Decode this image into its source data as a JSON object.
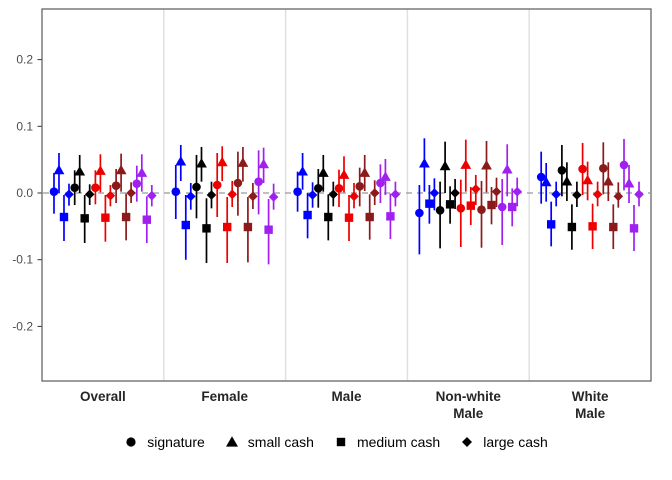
{
  "chart_data": {
    "type": "scatter",
    "subtype": "pointrange-coefficient-plot",
    "title": "",
    "xlabel": "",
    "ylabel": "",
    "ylim": [
      -0.28,
      0.276
    ],
    "grid": false,
    "zero_line": {
      "value": 0.0,
      "style": "dashed",
      "color": "#999999"
    },
    "yticks": [
      {
        "value": 0.2,
        "label": "0.2"
      },
      {
        "value": 0.1,
        "label": "0.1"
      },
      {
        "value": 0.0,
        "label": "0.0"
      },
      {
        "value": -0.1,
        "label": "-0.1"
      },
      {
        "value": -0.2,
        "label": "-0.2"
      }
    ],
    "shape_legend": [
      {
        "shape": "circle",
        "label": "signature"
      },
      {
        "shape": "triangle",
        "label": "small cash"
      },
      {
        "shape": "square",
        "label": "medium cash"
      },
      {
        "shape": "diamond",
        "label": "large cash"
      }
    ],
    "color_groups": [
      {
        "name": "group-1",
        "color": "#0000FF"
      },
      {
        "name": "group-2",
        "color": "#000000"
      },
      {
        "name": "group-3",
        "color": "#EE0000"
      },
      {
        "name": "group-4",
        "color": "#8B1A1A"
      },
      {
        "name": "group-5",
        "color": "#A020F0"
      }
    ],
    "value_format": "[estimate, ci_low, ci_high]",
    "facets": [
      {
        "label_lines": [
          "Overall"
        ],
        "groups": [
          {
            "color": "#0000FF",
            "estimates": {
              "signature": [
                0.002,
                -0.031,
                0.03
              ],
              "small_cash": [
                0.034,
                0.0,
                0.06
              ],
              "medium_cash": [
                -0.036,
                -0.072,
                -0.003
              ],
              "large_cash": [
                -0.002,
                -0.019,
                0.014
              ]
            }
          },
          {
            "color": "#000000",
            "estimates": {
              "signature": [
                0.008,
                -0.018,
                0.034
              ],
              "small_cash": [
                0.032,
                0.0,
                0.057
              ],
              "medium_cash": [
                -0.038,
                -0.075,
                -0.003
              ],
              "large_cash": [
                -0.002,
                -0.018,
                0.013
              ]
            }
          },
          {
            "color": "#EE0000",
            "estimates": {
              "signature": [
                0.008,
                -0.017,
                0.034
              ],
              "small_cash": [
                0.033,
                0.001,
                0.058
              ],
              "medium_cash": [
                -0.037,
                -0.073,
                -0.003
              ],
              "large_cash": [
                -0.004,
                -0.02,
                0.012
              ]
            }
          },
          {
            "color": "#8B1A1A",
            "estimates": {
              "signature": [
                0.011,
                -0.015,
                0.036
              ],
              "small_cash": [
                0.034,
                0.002,
                0.059
              ],
              "medium_cash": [
                -0.036,
                -0.071,
                -0.001
              ],
              "large_cash": [
                0.0,
                -0.015,
                0.016
              ]
            }
          },
          {
            "color": "#A020F0",
            "estimates": {
              "signature": [
                0.014,
                -0.013,
                0.041
              ],
              "small_cash": [
                0.03,
                0.002,
                0.058
              ],
              "medium_cash": [
                -0.04,
                -0.075,
                -0.005
              ],
              "large_cash": [
                -0.004,
                -0.02,
                0.012
              ]
            }
          }
        ]
      },
      {
        "label_lines": [
          "Female"
        ],
        "groups": [
          {
            "color": "#0000FF",
            "estimates": {
              "signature": [
                0.002,
                -0.039,
                0.042
              ],
              "small_cash": [
                0.047,
                0.018,
                0.072
              ],
              "medium_cash": [
                -0.048,
                -0.1,
                -0.003
              ],
              "large_cash": [
                -0.005,
                -0.025,
                0.015
              ]
            }
          },
          {
            "color": "#000000",
            "estimates": {
              "signature": [
                0.009,
                -0.038,
                0.057
              ],
              "small_cash": [
                0.044,
                0.017,
                0.069
              ],
              "medium_cash": [
                -0.053,
                -0.105,
                -0.008
              ],
              "large_cash": [
                -0.003,
                -0.023,
                0.017
              ]
            }
          },
          {
            "color": "#EE0000",
            "estimates": {
              "signature": [
                0.012,
                -0.036,
                0.06
              ],
              "small_cash": [
                0.046,
                0.018,
                0.07
              ],
              "medium_cash": [
                -0.051,
                -0.105,
                -0.006
              ],
              "large_cash": [
                -0.002,
                -0.021,
                0.018
              ]
            }
          },
          {
            "color": "#8B1A1A",
            "estimates": {
              "signature": [
                0.015,
                -0.034,
                0.062
              ],
              "small_cash": [
                0.045,
                0.017,
                0.069
              ],
              "medium_cash": [
                -0.051,
                -0.104,
                -0.006
              ],
              "large_cash": [
                -0.005,
                -0.024,
                0.015
              ]
            }
          },
          {
            "color": "#A020F0",
            "estimates": {
              "signature": [
                0.017,
                -0.032,
                0.064
              ],
              "small_cash": [
                0.043,
                0.015,
                0.068
              ],
              "medium_cash": [
                -0.055,
                -0.107,
                -0.009
              ],
              "large_cash": [
                -0.006,
                -0.025,
                0.014
              ]
            }
          }
        ]
      },
      {
        "label_lines": [
          "Male"
        ],
        "groups": [
          {
            "color": "#0000FF",
            "estimates": {
              "signature": [
                0.002,
                -0.028,
                0.032
              ],
              "small_cash": [
                0.032,
                0.005,
                0.06
              ],
              "medium_cash": [
                -0.033,
                -0.068,
                0.0
              ],
              "large_cash": [
                -0.003,
                -0.022,
                0.016
              ]
            }
          },
          {
            "color": "#000000",
            "estimates": {
              "signature": [
                0.007,
                -0.022,
                0.036
              ],
              "small_cash": [
                0.03,
                0.002,
                0.057
              ],
              "medium_cash": [
                -0.036,
                -0.071,
                -0.002
              ],
              "large_cash": [
                -0.002,
                -0.02,
                0.017
              ]
            }
          },
          {
            "color": "#EE0000",
            "estimates": {
              "signature": [
                0.007,
                -0.021,
                0.035
              ],
              "small_cash": [
                0.027,
                0.001,
                0.055
              ],
              "medium_cash": [
                -0.037,
                -0.072,
                -0.003
              ],
              "large_cash": [
                -0.005,
                -0.023,
                0.015
              ]
            }
          },
          {
            "color": "#8B1A1A",
            "estimates": {
              "signature": [
                0.01,
                -0.02,
                0.038
              ],
              "small_cash": [
                0.03,
                0.003,
                0.057
              ],
              "medium_cash": [
                -0.036,
                -0.07,
                -0.002
              ],
              "large_cash": [
                0.0,
                -0.018,
                0.019
              ]
            }
          },
          {
            "color": "#A020F0",
            "estimates": {
              "signature": [
                0.015,
                -0.015,
                0.043
              ],
              "small_cash": [
                0.024,
                -0.003,
                0.051
              ],
              "medium_cash": [
                -0.035,
                -0.069,
                -0.001
              ],
              "large_cash": [
                -0.002,
                -0.02,
                0.017
              ]
            }
          }
        ]
      },
      {
        "label_lines": [
          "Non-white",
          "Male"
        ],
        "groups": [
          {
            "color": "#0000FF",
            "estimates": {
              "signature": [
                -0.03,
                -0.092,
                0.012
              ],
              "small_cash": [
                0.044,
                0.002,
                0.082
              ],
              "medium_cash": [
                -0.016,
                -0.046,
                0.012
              ],
              "large_cash": [
                0.0,
                -0.026,
                0.022
              ]
            }
          },
          {
            "color": "#000000",
            "estimates": {
              "signature": [
                -0.026,
                -0.083,
                0.017
              ],
              "small_cash": [
                0.04,
                0.0,
                0.077
              ],
              "medium_cash": [
                -0.017,
                -0.046,
                0.01
              ],
              "large_cash": [
                0.0,
                -0.024,
                0.021
              ]
            }
          },
          {
            "color": "#EE0000",
            "estimates": {
              "signature": [
                -0.023,
                -0.081,
                0.02
              ],
              "small_cash": [
                0.042,
                0.002,
                0.08
              ],
              "medium_cash": [
                -0.019,
                -0.048,
                0.009
              ],
              "large_cash": [
                0.006,
                -0.018,
                0.027
              ]
            }
          },
          {
            "color": "#8B1A1A",
            "estimates": {
              "signature": [
                -0.025,
                -0.082,
                0.018
              ],
              "small_cash": [
                0.041,
                0.001,
                0.078
              ],
              "medium_cash": [
                -0.018,
                -0.047,
                0.009
              ],
              "large_cash": [
                0.002,
                -0.021,
                0.023
              ]
            }
          },
          {
            "color": "#A020F0",
            "estimates": {
              "signature": [
                -0.021,
                -0.078,
                0.021
              ],
              "small_cash": [
                0.035,
                -0.005,
                0.073
              ],
              "medium_cash": [
                -0.021,
                -0.05,
                0.007
              ],
              "large_cash": [
                0.002,
                -0.02,
                0.023
              ]
            }
          }
        ]
      },
      {
        "label_lines": [
          "White",
          "Male"
        ],
        "groups": [
          {
            "color": "#0000FF",
            "estimates": {
              "signature": [
                0.024,
                -0.016,
                0.062
              ],
              "small_cash": [
                0.016,
                -0.013,
                0.045
              ],
              "medium_cash": [
                -0.047,
                -0.08,
                -0.013
              ],
              "large_cash": [
                -0.002,
                -0.02,
                0.017
              ]
            }
          },
          {
            "color": "#000000",
            "estimates": {
              "signature": [
                0.034,
                -0.005,
                0.072
              ],
              "small_cash": [
                0.017,
                -0.012,
                0.046
              ],
              "medium_cash": [
                -0.051,
                -0.085,
                -0.017
              ],
              "large_cash": [
                -0.003,
                -0.021,
                0.017
              ]
            }
          },
          {
            "color": "#EE0000",
            "estimates": {
              "signature": [
                0.036,
                -0.003,
                0.075
              ],
              "small_cash": [
                0.019,
                -0.011,
                0.047
              ],
              "medium_cash": [
                -0.05,
                -0.084,
                -0.016
              ],
              "large_cash": [
                -0.002,
                -0.02,
                0.017
              ]
            }
          },
          {
            "color": "#8B1A1A",
            "estimates": {
              "signature": [
                0.037,
                -0.002,
                0.076
              ],
              "small_cash": [
                0.017,
                -0.012,
                0.046
              ],
              "medium_cash": [
                -0.051,
                -0.084,
                -0.017
              ],
              "large_cash": [
                -0.005,
                -0.022,
                0.016
              ]
            }
          },
          {
            "color": "#A020F0",
            "estimates": {
              "signature": [
                0.042,
                0.004,
                0.081
              ],
              "small_cash": [
                0.014,
                -0.015,
                0.042
              ],
              "medium_cash": [
                -0.053,
                -0.087,
                -0.018
              ],
              "large_cash": [
                -0.002,
                -0.02,
                0.017
              ]
            }
          }
        ]
      }
    ],
    "legend_position": "bottom",
    "panel_border_color": "#595959",
    "facet_separator_color": "#E0E0E0",
    "axis_text_color": "#4D4D4D",
    "facet_label_color": "#262626"
  }
}
